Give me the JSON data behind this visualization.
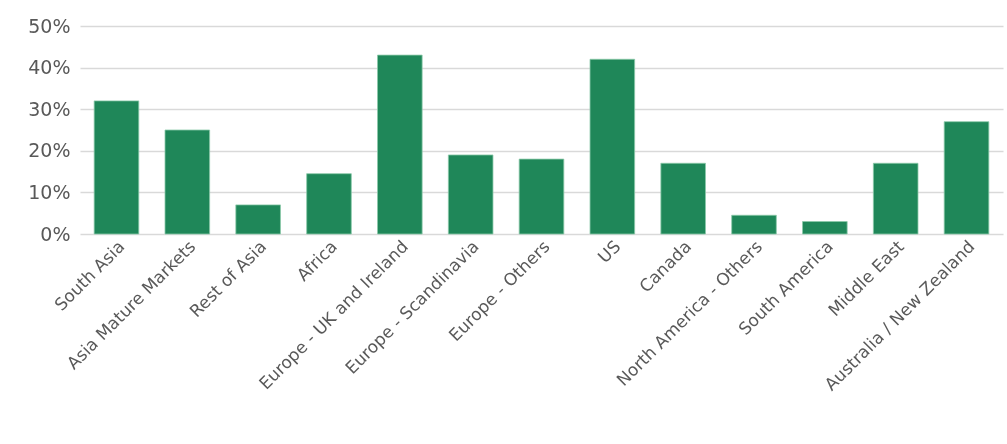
{
  "chart_data": {
    "type": "bar",
    "categories": [
      "South Asia",
      "Asia Mature Markets",
      "Rest of Asia",
      "Africa",
      "Europe - UK and Ireland",
      "Europe - Scandinavia",
      "Europe - Others",
      "US",
      "Canada",
      "North America - Others",
      "South America",
      "Middle East",
      "Australia / New Zealand"
    ],
    "values": [
      32,
      25,
      7,
      14.5,
      43,
      19,
      18,
      42,
      17,
      4.5,
      3,
      17,
      27
    ],
    "color": "#1f8759",
    "ylim": [
      0,
      50
    ],
    "yticks": [
      {
        "value": 0,
        "label": "0%"
      },
      {
        "value": 10,
        "label": "10%"
      },
      {
        "value": 20,
        "label": "20%"
      },
      {
        "value": 30,
        "label": "30%"
      },
      {
        "value": 40,
        "label": "40%"
      },
      {
        "value": 50,
        "label": "50%"
      }
    ],
    "grid": "y"
  }
}
